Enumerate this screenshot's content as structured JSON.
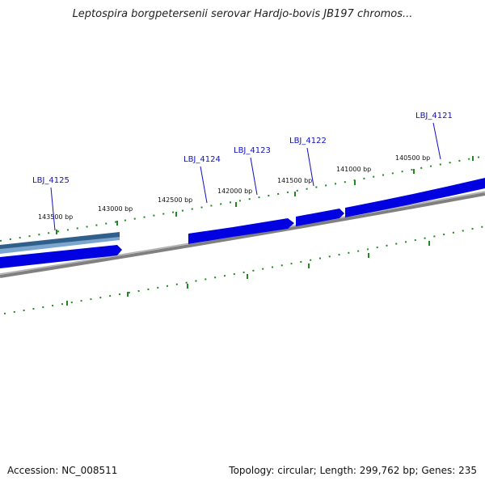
{
  "title": "Leptospira borgpetersenii serovar Hardjo-bovis JB197 chromos...",
  "footer": {
    "accession": "Accession: NC_008511",
    "summary": "Topology: circular; Length: 299,762 bp; Genes: 235"
  },
  "map": {
    "tick_color": "#228822",
    "backbone_color": "#808080",
    "gene_color": "#0000e0",
    "gene_color_alt": "#4f86b8",
    "position_labels": [
      "143500 bp",
      "143000 bp",
      "142500 bp",
      "142000 bp",
      "141500 bp",
      "141000 bp",
      "140500 bp"
    ],
    "genes": [
      {
        "name": "LBJ_4125"
      },
      {
        "name": "LBJ_4124"
      },
      {
        "name": "LBJ_4123"
      },
      {
        "name": "LBJ_4122"
      },
      {
        "name": "LBJ_4121"
      }
    ]
  }
}
